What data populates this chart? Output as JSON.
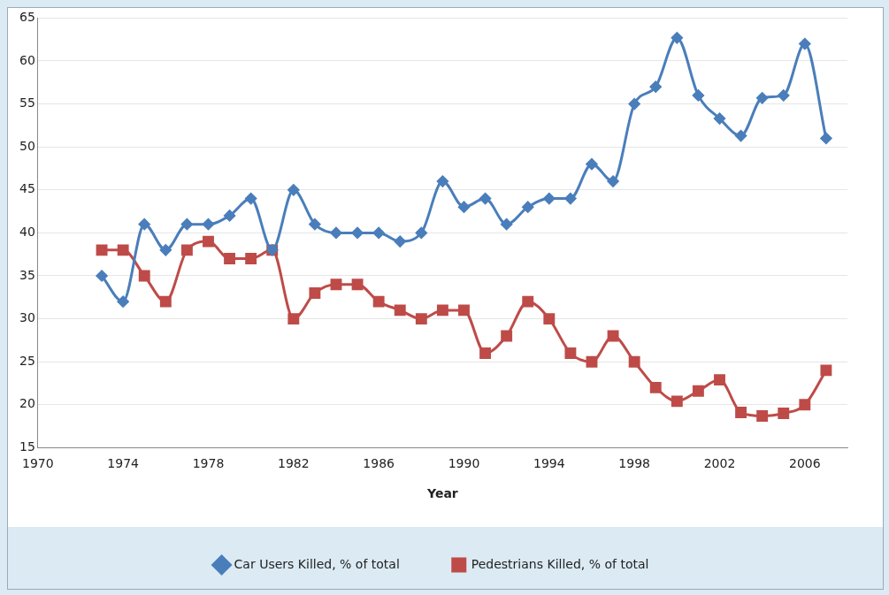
{
  "chart_data": {
    "type": "line",
    "xlabel": "Year",
    "x": [
      1973,
      1974,
      1975,
      1976,
      1977,
      1978,
      1979,
      1980,
      1981,
      1982,
      1983,
      1984,
      1985,
      1986,
      1987,
      1988,
      1989,
      1990,
      1991,
      1992,
      1993,
      1994,
      1995,
      1996,
      1997,
      1998,
      1999,
      2000,
      2001,
      2002,
      2003,
      2004,
      2005,
      2006,
      2007
    ],
    "series": [
      {
        "name": "Car Users Killed, % of total",
        "color": "#4a7ebb",
        "marker": "diamond",
        "values": [
          35,
          32,
          41,
          38,
          41,
          41,
          42,
          44,
          38,
          45,
          41,
          40,
          40,
          40,
          39,
          40,
          46,
          43,
          44,
          41,
          43,
          44,
          44,
          48,
          46,
          55,
          57,
          62.7,
          56,
          53.3,
          51.3,
          55.7,
          56,
          62,
          51
        ]
      },
      {
        "name": "Pedestrians Killed, % of total",
        "color": "#be4b48",
        "marker": "square",
        "values": [
          38,
          38,
          35,
          32,
          38,
          39,
          37,
          37,
          38,
          30,
          33,
          34,
          34,
          32,
          31,
          30,
          31,
          31,
          26,
          28,
          32,
          30,
          26,
          25,
          28,
          25,
          22,
          20.4,
          21.6,
          22.9,
          19.1,
          18.7,
          19,
          20,
          24
        ]
      }
    ],
    "xlim": [
      1970,
      2008
    ],
    "xticks": [
      1970,
      1974,
      1978,
      1982,
      1986,
      1990,
      1994,
      1998,
      2002,
      2006
    ],
    "ylim": [
      15,
      65
    ],
    "yticks": [
      15,
      20,
      25,
      30,
      35,
      40,
      45,
      50,
      55,
      60,
      65
    ],
    "grid": "y",
    "legend": "bottom"
  }
}
